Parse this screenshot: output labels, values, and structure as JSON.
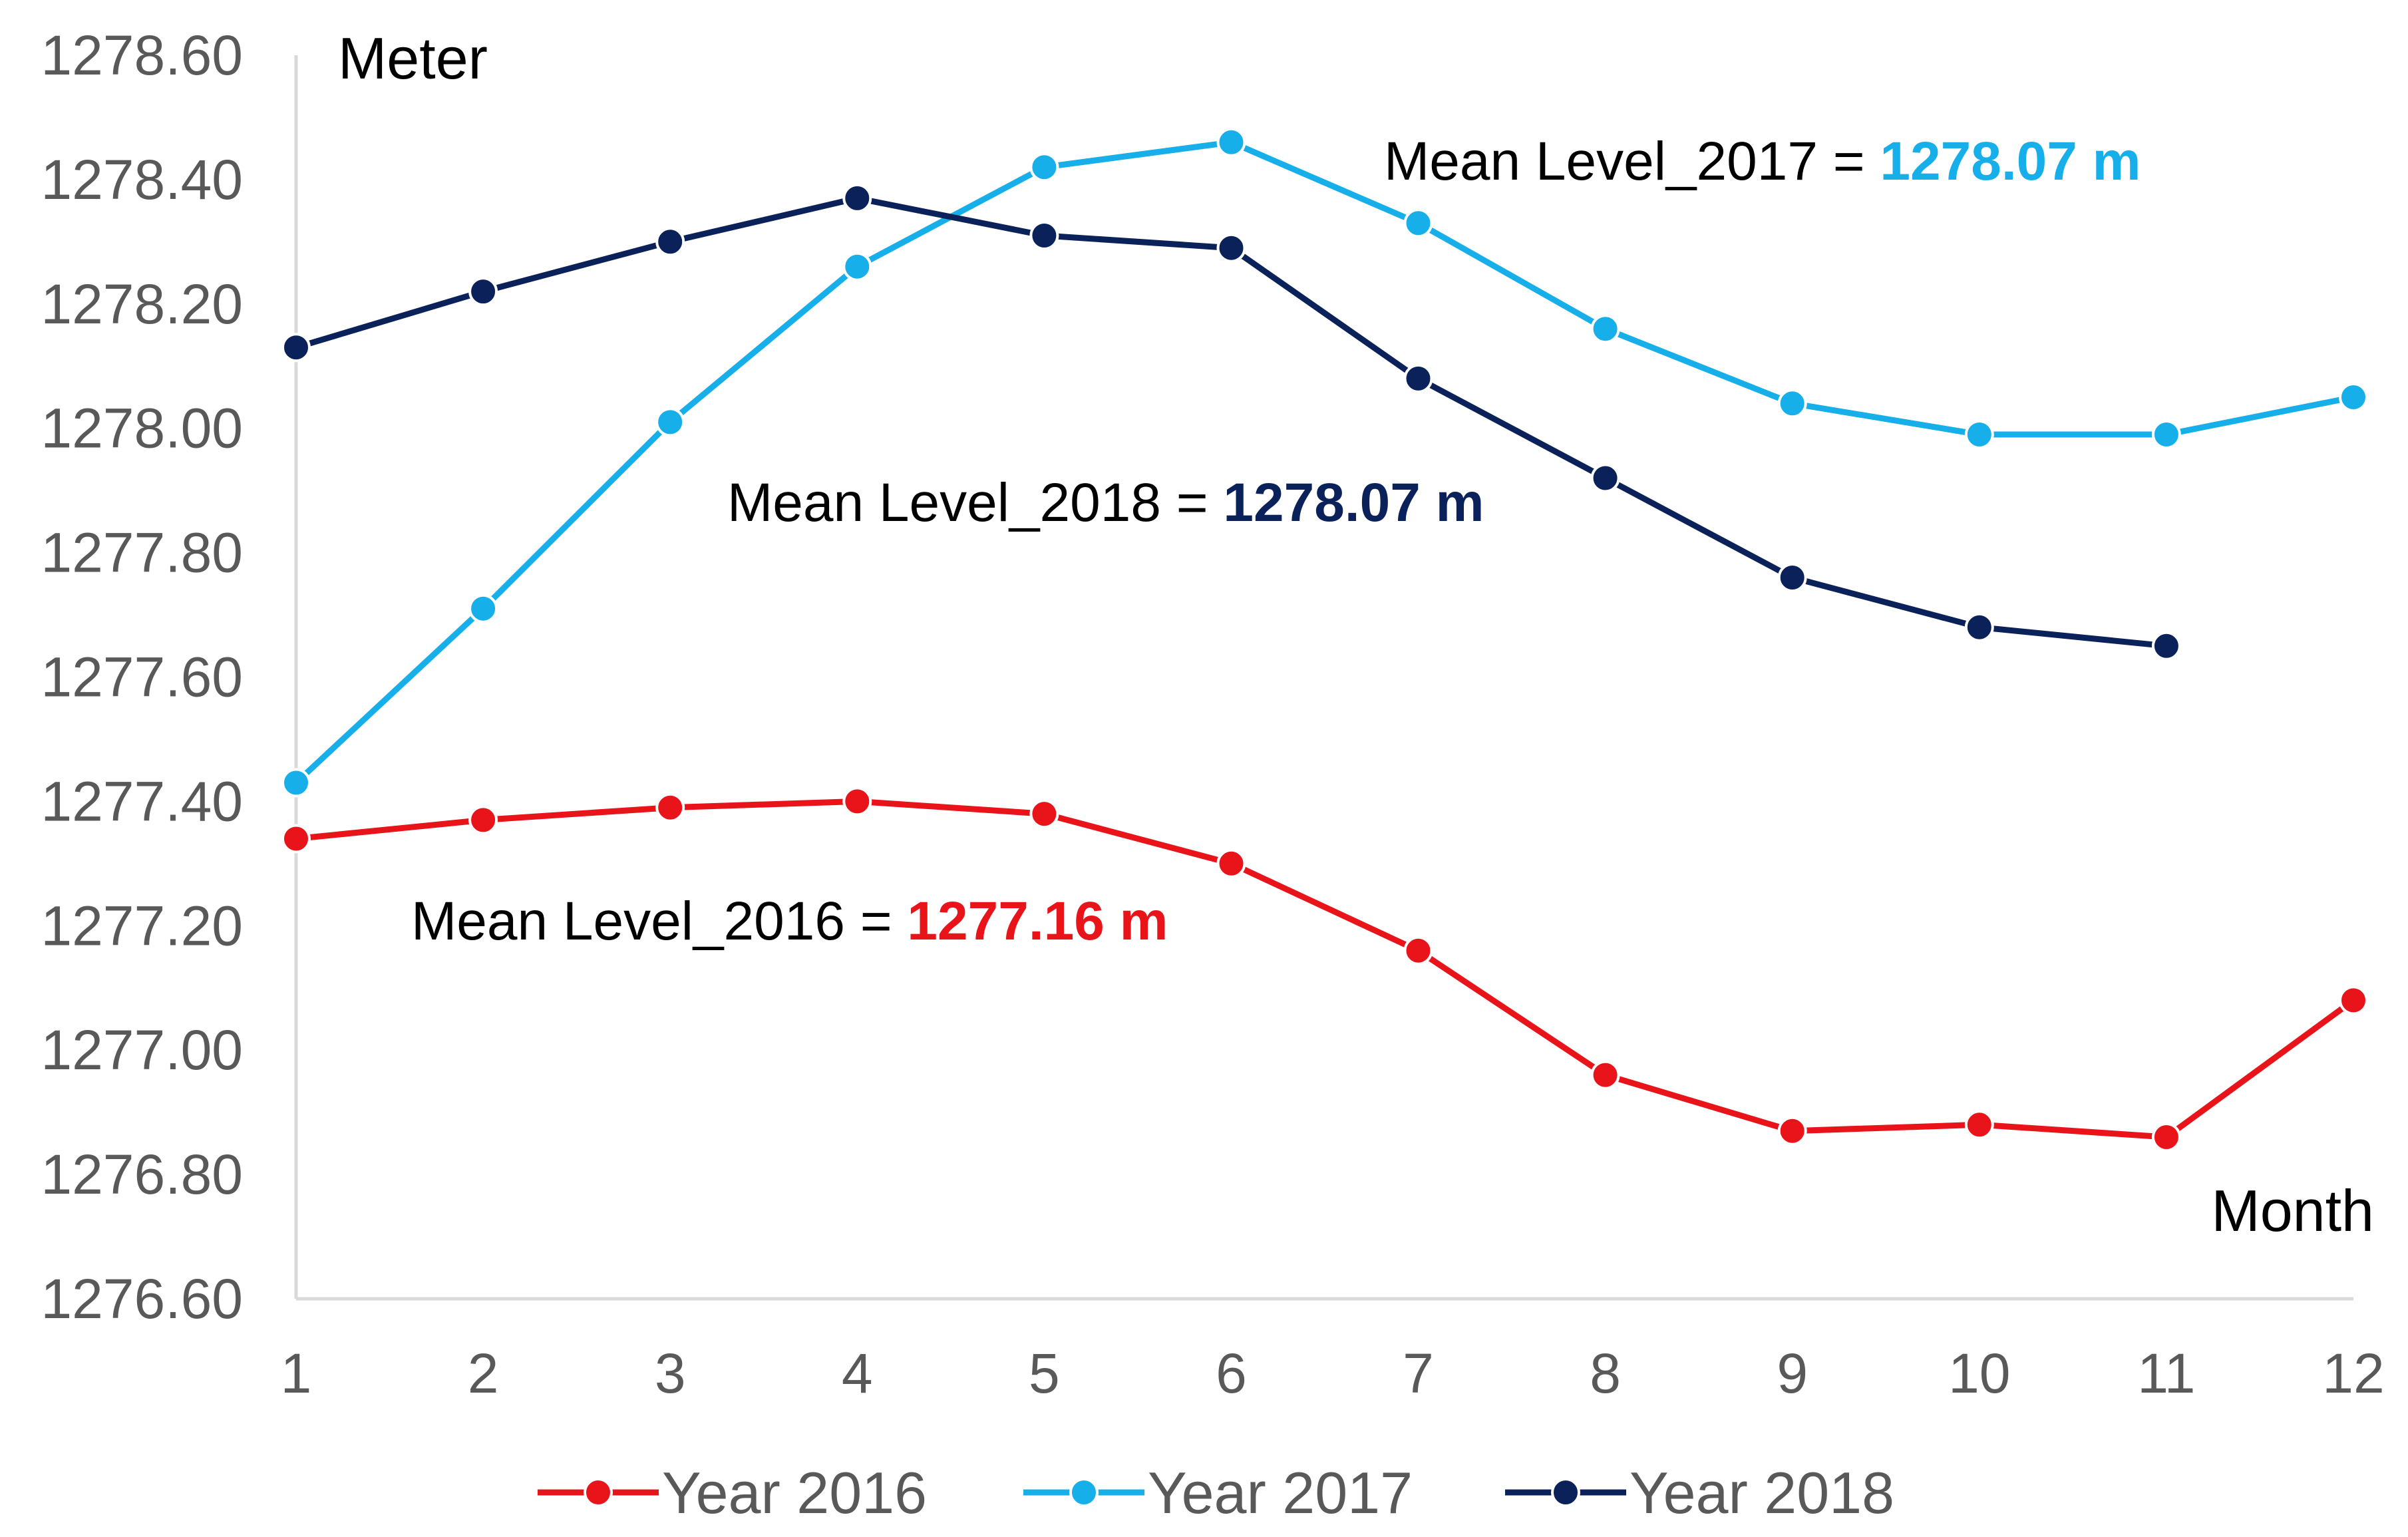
{
  "chart_data": {
    "type": "line",
    "title": "",
    "xlabel": "Month",
    "ylabel": "Meter",
    "x": [
      1,
      2,
      3,
      4,
      5,
      6,
      7,
      8,
      9,
      10,
      11,
      12
    ],
    "x_tick_labels": [
      "1",
      "2",
      "3",
      "4",
      "5",
      "6",
      "7",
      "8",
      "9",
      "10",
      "11",
      "12"
    ],
    "ylim": [
      1276.6,
      1278.6
    ],
    "y_ticks": [
      1276.6,
      1276.8,
      1277.0,
      1277.2,
      1277.4,
      1277.6,
      1277.8,
      1278.0,
      1278.2,
      1278.4,
      1278.6
    ],
    "y_tick_labels": [
      "1276.60",
      "1276.80",
      "1277.00",
      "1277.20",
      "1277.40",
      "1277.60",
      "1277.80",
      "1278.00",
      "1278.20",
      "1278.40",
      "1278.60"
    ],
    "grid": false,
    "legend_position": "bottom",
    "series": [
      {
        "name": "Year 2016",
        "color": "#e8141a",
        "values": [
          1277.34,
          1277.37,
          1277.39,
          1277.4,
          1277.38,
          1277.3,
          1277.16,
          1276.96,
          1276.87,
          1276.88,
          1276.86,
          1277.08
        ]
      },
      {
        "name": "Year 2017",
        "color": "#16afe9",
        "values": [
          1277.43,
          1277.71,
          1278.01,
          1278.26,
          1278.42,
          1278.46,
          1278.33,
          1278.16,
          1278.04,
          1277.99,
          1277.99,
          1278.05
        ]
      },
      {
        "name": "Year 2018",
        "color": "#0b215a",
        "values": [
          1278.13,
          1278.22,
          1278.3,
          1278.37,
          1278.31,
          1278.29,
          1278.08,
          1277.92,
          1277.76,
          1277.68,
          1277.65,
          null
        ]
      }
    ],
    "annotations": [
      {
        "prefix": "Mean Level_2017 = ",
        "value": "1278.07 m",
        "color": "#16afe9"
      },
      {
        "prefix": "Mean Level_2018 = ",
        "value": "1278.07 m",
        "color": "#0b215a"
      },
      {
        "prefix": "Mean Level_2016 = ",
        "value": "1277.16 m",
        "color": "#e8141a"
      }
    ]
  }
}
